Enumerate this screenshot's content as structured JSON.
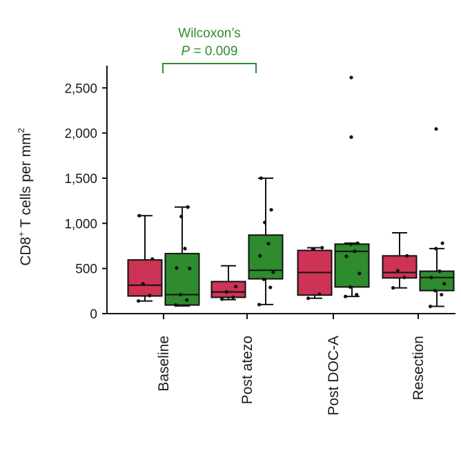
{
  "chart_data": {
    "type": "box",
    "ylabel": "CD8",
    "ylabel_sup": "+",
    "ylabel_rest": " T cells per mm",
    "ylabel_sup2": "2",
    "ylim": [
      0,
      2700
    ],
    "yticks": [
      0,
      500,
      1000,
      1500,
      2000,
      2500
    ],
    "ytick_labels": [
      "0",
      "500",
      "1,000",
      "1,500",
      "2,000",
      "2,500"
    ],
    "categories": [
      "Baseline",
      "Post atezo",
      "Post DOC-A",
      "Resection"
    ],
    "series": [
      {
        "color": "#cc3355",
        "boxes": [
          {
            "whisker_low": 140,
            "q1": 195,
            "median": 315,
            "q3": 595,
            "whisker_high": 1085,
            "points": [
              140,
              200,
              330,
              605,
              1085
            ],
            "outliers": []
          },
          {
            "whisker_low": 155,
            "q1": 180,
            "median": 240,
            "q3": 355,
            "whisker_high": 530,
            "points": [
              160,
              180,
              240,
              300
            ],
            "outliers": []
          },
          {
            "whisker_low": 170,
            "q1": 205,
            "median": 455,
            "q3": 700,
            "whisker_high": 730,
            "points": [
              170,
              215,
              715,
              730
            ],
            "outliers": []
          },
          {
            "whisker_low": 285,
            "q1": 395,
            "median": 455,
            "q3": 640,
            "whisker_high": 895,
            "points": [
              285,
              400,
              475,
              640
            ],
            "outliers": []
          }
        ]
      },
      {
        "color": "#2e8b2e",
        "boxes": [
          {
            "whisker_low": 85,
            "q1": 95,
            "median": 210,
            "q3": 665,
            "whisker_high": 1180,
            "points": [
              95,
              150,
              210,
              500,
              505,
              720,
              1075,
              1180
            ],
            "outliers": []
          },
          {
            "whisker_low": 100,
            "q1": 385,
            "median": 480,
            "q3": 870,
            "whisker_high": 1500,
            "points": [
              100,
              290,
              380,
              460,
              640,
              775,
              1010,
              1150,
              1500
            ],
            "outliers": []
          },
          {
            "whisker_low": 190,
            "q1": 295,
            "median": 690,
            "q3": 770,
            "whisker_high": 780,
            "points": [
              190,
              210,
              295,
              445,
              635,
              690,
              770,
              780
            ],
            "outliers": [
              1955,
              2615
            ]
          },
          {
            "whisker_low": 80,
            "q1": 255,
            "median": 400,
            "q3": 470,
            "whisker_high": 720,
            "points": [
              80,
              210,
              255,
              330,
              400,
              470,
              720,
              780
            ],
            "outliers": [
              2045
            ]
          }
        ]
      }
    ],
    "annotation": {
      "line1": "Wilcoxon’s",
      "p_symbol": "P",
      "p_text": " = 0.009",
      "color": "#2e8b2e",
      "y_value": 2780
    }
  }
}
